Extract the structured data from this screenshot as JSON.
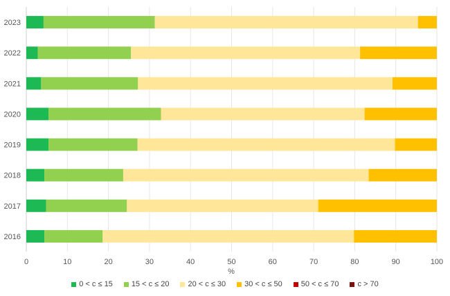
{
  "chart_data": {
    "type": "bar",
    "orientation": "horizontal",
    "stacked": true,
    "categories": [
      "2023",
      "2022",
      "2021",
      "2020",
      "2019",
      "2018",
      "2017",
      "2016"
    ],
    "series": [
      {
        "name": "0 < c ≤ 15",
        "color": "#1db954",
        "values": [
          4.2,
          2.8,
          3.6,
          5.4,
          5.4,
          4.4,
          4.8,
          4.4
        ]
      },
      {
        "name": "15 < c ≤ 20",
        "color": "#92d050",
        "values": [
          27.1,
          22.7,
          23.6,
          27.4,
          21.7,
          19.2,
          19.7,
          14.2
        ]
      },
      {
        "name": "20 < c ≤ 30",
        "color": "#ffe699",
        "values": [
          64.1,
          55.8,
          62.0,
          49.6,
          62.7,
          59.8,
          46.6,
          61.2
        ]
      },
      {
        "name": "30 < c ≤ 50",
        "color": "#ffc000",
        "values": [
          4.6,
          18.7,
          10.8,
          17.6,
          10.2,
          16.6,
          28.9,
          20.2
        ]
      },
      {
        "name": "50 < c ≤ 70",
        "color": "#c00000",
        "values": [
          0,
          0,
          0,
          0,
          0,
          0,
          0,
          0
        ]
      },
      {
        "name": "c > 70",
        "color": "#7b1010",
        "values": [
          0,
          0,
          0,
          0,
          0,
          0,
          0,
          0
        ]
      }
    ],
    "xlabel": "%",
    "ylabel": "",
    "xlim": [
      0,
      100
    ],
    "xticks": [
      "0",
      "10",
      "20",
      "30",
      "40",
      "50",
      "60",
      "70",
      "80",
      "90",
      "100"
    ],
    "grid": true,
    "legend_position": "bottom"
  }
}
